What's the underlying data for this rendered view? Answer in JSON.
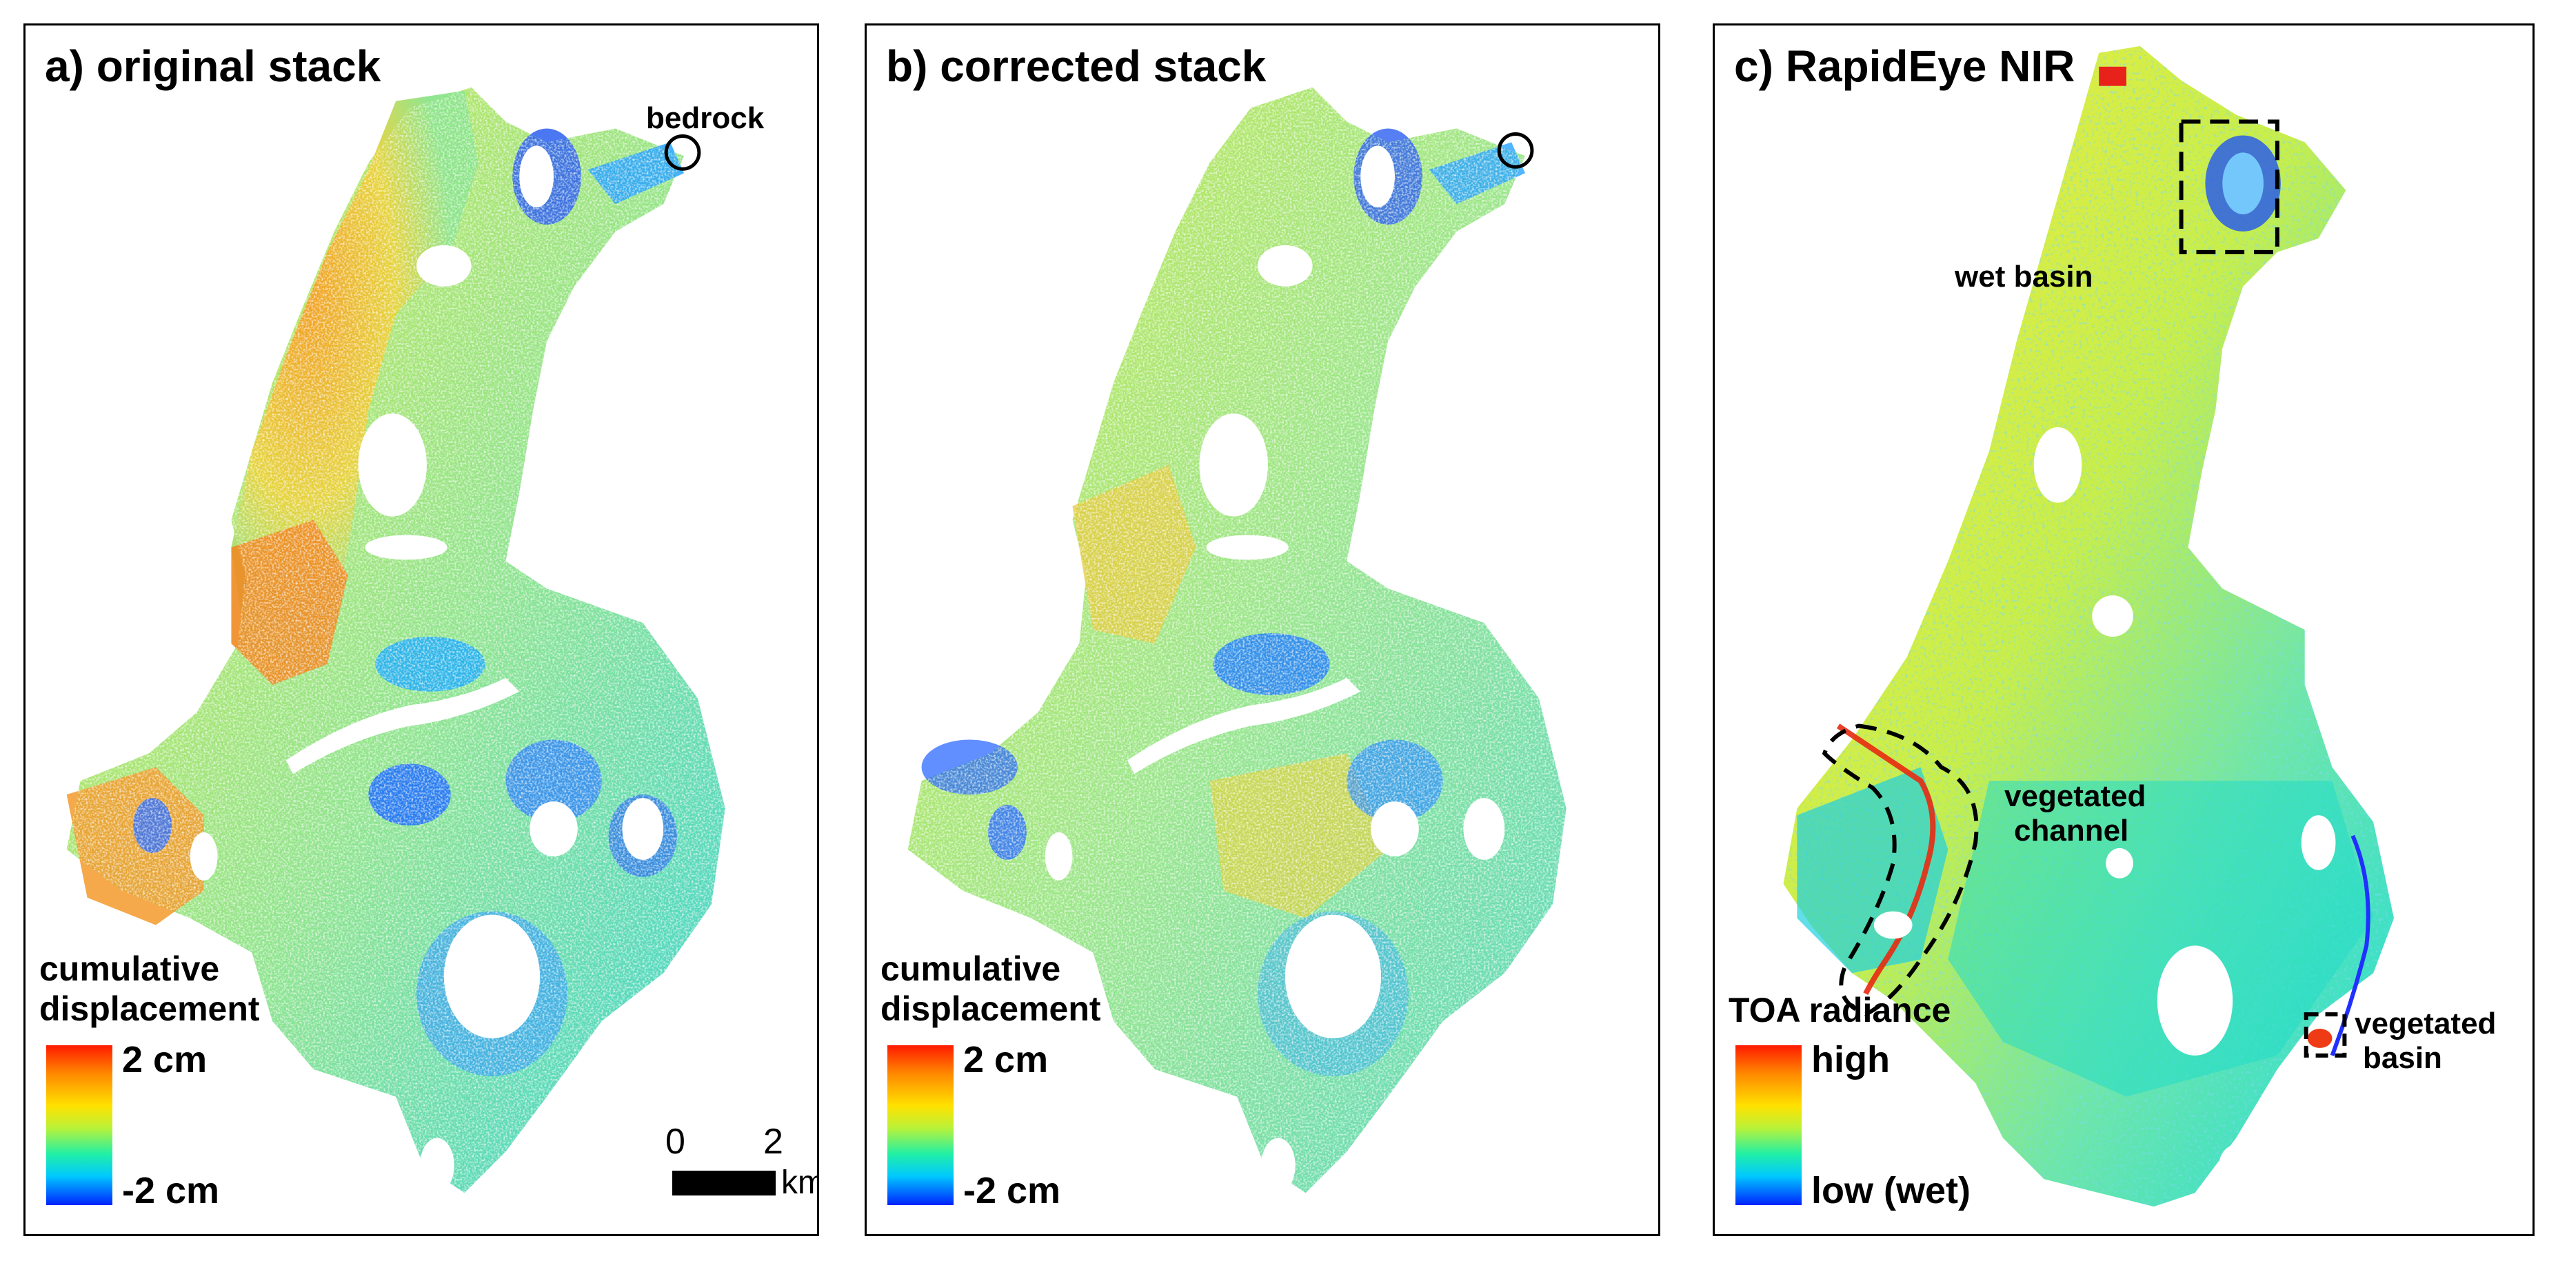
{
  "panels": {
    "a": {
      "title": "a) original stack",
      "legend_title": "cumulative displacement",
      "legend_max": "2 cm",
      "legend_min": "-2 cm",
      "annotation_bedrock": "bedrock",
      "scale": {
        "label0": "0",
        "label2": "2",
        "unit": "km"
      }
    },
    "b": {
      "title": "b) corrected stack",
      "legend_title": "cumulative displacement",
      "legend_max": "2 cm",
      "legend_min": "-2 cm"
    },
    "c": {
      "title": "c) RapidEye NIR",
      "legend_title": "TOA radiance",
      "legend_max": "high",
      "legend_min": "low (wet)",
      "annotation_wet_basin": "wet basin",
      "annotation_vegetated_channel_1": "vegetated",
      "annotation_vegetated_channel_2": "channel",
      "annotation_vegetated_basin_1": "vegetated",
      "annotation_vegetated_basin_2": "basin"
    }
  },
  "colors": {
    "high": "#ff1a00",
    "mid": "#ffe200",
    "low": "#0022ff",
    "water_gap": "#ffffff"
  }
}
